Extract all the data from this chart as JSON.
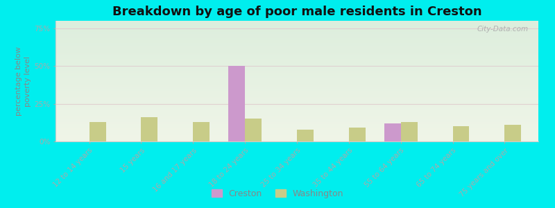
{
  "title": "Breakdown by age of poor male residents in Creston",
  "categories": [
    "12 to 14 years",
    "15 years",
    "16 and 17 years",
    "18 to 24 years",
    "25 to 34 years",
    "35 to 44 years",
    "55 to 64 years",
    "65 to 74 years",
    "75 years and over"
  ],
  "creston": [
    0,
    0,
    0,
    50,
    0,
    0,
    12,
    0,
    0
  ],
  "washington": [
    13,
    16,
    13,
    15,
    8,
    9,
    13,
    10,
    11
  ],
  "creston_color": "#cc99cc",
  "washington_color": "#c8cc88",
  "bg_color": "#00eeee",
  "plot_bg_top": "#ddeedd",
  "plot_bg_bottom": "#f0f5e8",
  "ylabel": "percentage below\npoverty level",
  "ylim": [
    0,
    80
  ],
  "yticks": [
    0,
    25,
    50,
    75
  ],
  "bar_width": 0.32,
  "title_fontsize": 13,
  "axis_fontsize": 8,
  "tick_fontsize": 7.5,
  "watermark": "City-Data.com",
  "grid_color": "#e0d0d0",
  "spine_color": "#cccccc",
  "text_color": "#888888",
  "title_color": "#111111"
}
